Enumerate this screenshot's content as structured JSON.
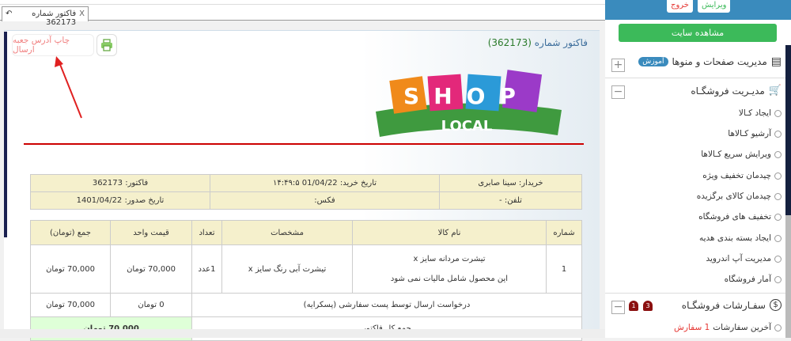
{
  "tab": {
    "label": "فاکتور شماره 362173",
    "close": "X"
  },
  "header": {
    "title_label": "فاکتور شماره",
    "invoice_number": "(362173)",
    "print_address_label": "چاپ آدرس جعبه ارسال"
  },
  "logo": {
    "text_top": "SHOP",
    "text_bottom": "LOCAL"
  },
  "info": {
    "buyer": "خریدار: سینا صابری",
    "purchase_date": "تاریخ خرید: 01/04/22 ۱۴:۴۹:۵",
    "invoice": "فاکتور: 362173",
    "phone": "تلفن: -",
    "fax": "فکس:",
    "issue_date": "تاریخ صدور: 1401/04/22"
  },
  "items": {
    "headers": [
      "شماره",
      "نام کالا",
      "مشخصات",
      "تعداد",
      "قیمت واحد",
      "جمع (تومان)"
    ],
    "rows": [
      {
        "num": "1",
        "name": "تیشرت مردانه سایز x",
        "note": "این محصول شامل مالیات نمی شود",
        "spec": "تیشرت آبی رنگ سایز x",
        "qty": "1عدد",
        "unit": "70,000 تومان",
        "total": "70,000 تومان"
      }
    ],
    "shipping": {
      "label": "درخواست ارسال توسط پست سفارشی (پسکرایه)",
      "unit": "0 تومان",
      "total": "70,000 تومان"
    },
    "grand": {
      "label": "جمع کل فاکتور",
      "total": "70,000 تومان"
    }
  },
  "sidebar": {
    "edit": "ویرایش",
    "logout": "خروج",
    "view_site": "مشاهده سایت",
    "pages_section": "مدیریت صفحات و منوها",
    "tutorial_badge": "آموزش",
    "store_section": "مدیـریت فروشگـاه",
    "store_items": [
      "ایجاد کـالا",
      "آرشیو کـالاها",
      "ویرایش سریع کـالاها",
      "چیدمان تخفیف ویژه",
      "چیدمان کالای برگزیده",
      "تخفیف های فروشگاه",
      "ایجاد بسته بندی هدیه",
      "مدیریت آپ اندروید",
      "آمار فروشگاه"
    ],
    "orders_section": "سفـارشات فروشگـاه",
    "bell_counts": [
      "3",
      "1"
    ],
    "latest_orders_label": "آخرین سفارشات",
    "latest_orders_count": "1 سفارش"
  },
  "colors": {
    "accent": "#3a8bbd",
    "green": "#3cba5a",
    "red_line": "#cc0000",
    "table_header": "#f5f0cc"
  }
}
